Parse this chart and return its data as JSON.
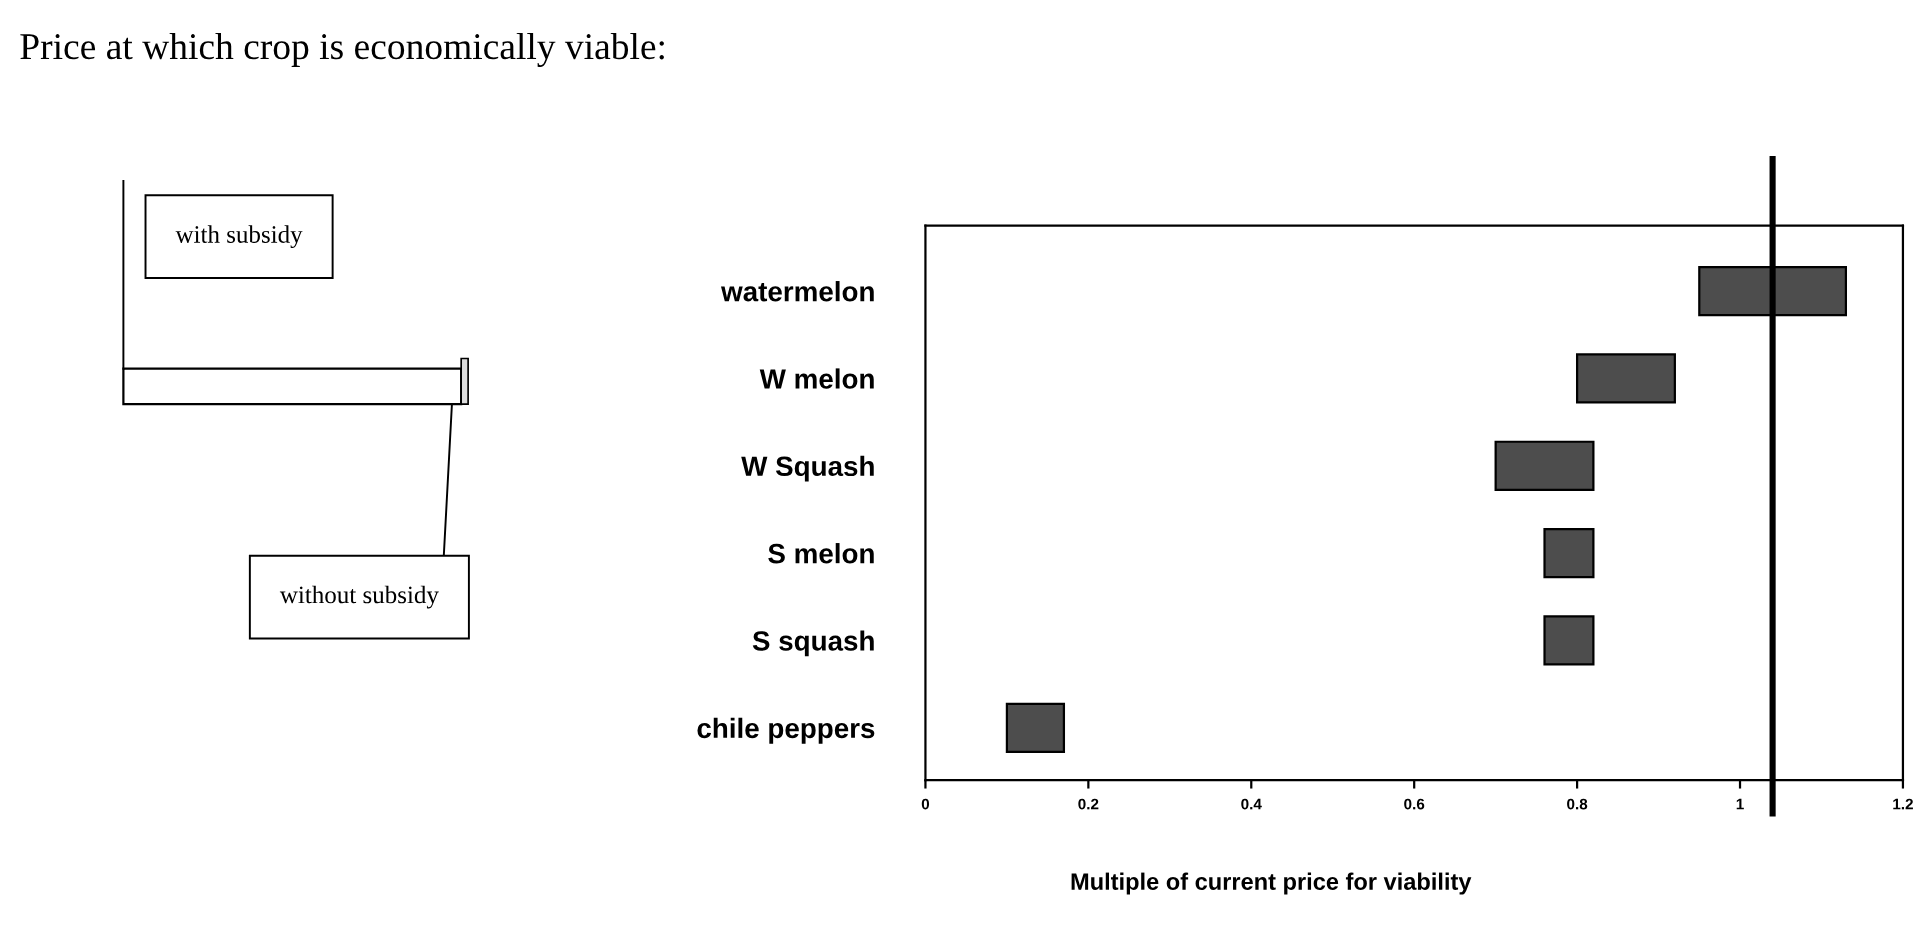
{
  "chart_data": {
    "type": "bar",
    "orientation": "horizontal",
    "title": "Price at which crop is economically viable:",
    "categories": [
      "watermelon",
      "W melon",
      "W Squash",
      "S melon",
      "S squash",
      "chile peppers"
    ],
    "base": [
      0.95,
      0.8,
      0.7,
      0.76,
      0.76,
      0.1
    ],
    "values": [
      0.18,
      0.12,
      0.12,
      0.06,
      0.06,
      0.07
    ],
    "color": "#4d4d4d",
    "xlim": [
      0,
      1.2
    ],
    "xticks": [
      0,
      0.2,
      0.4,
      0.6,
      0.8,
      1,
      1.2
    ],
    "xlabel": "Multiple of current price for viability",
    "ref_lines": [
      {
        "axis": "x",
        "value": 1.04,
        "color": "#000000"
      }
    ],
    "annotations": [
      "with subsidy",
      "without subsidy"
    ],
    "grid": false,
    "legend": false
  }
}
